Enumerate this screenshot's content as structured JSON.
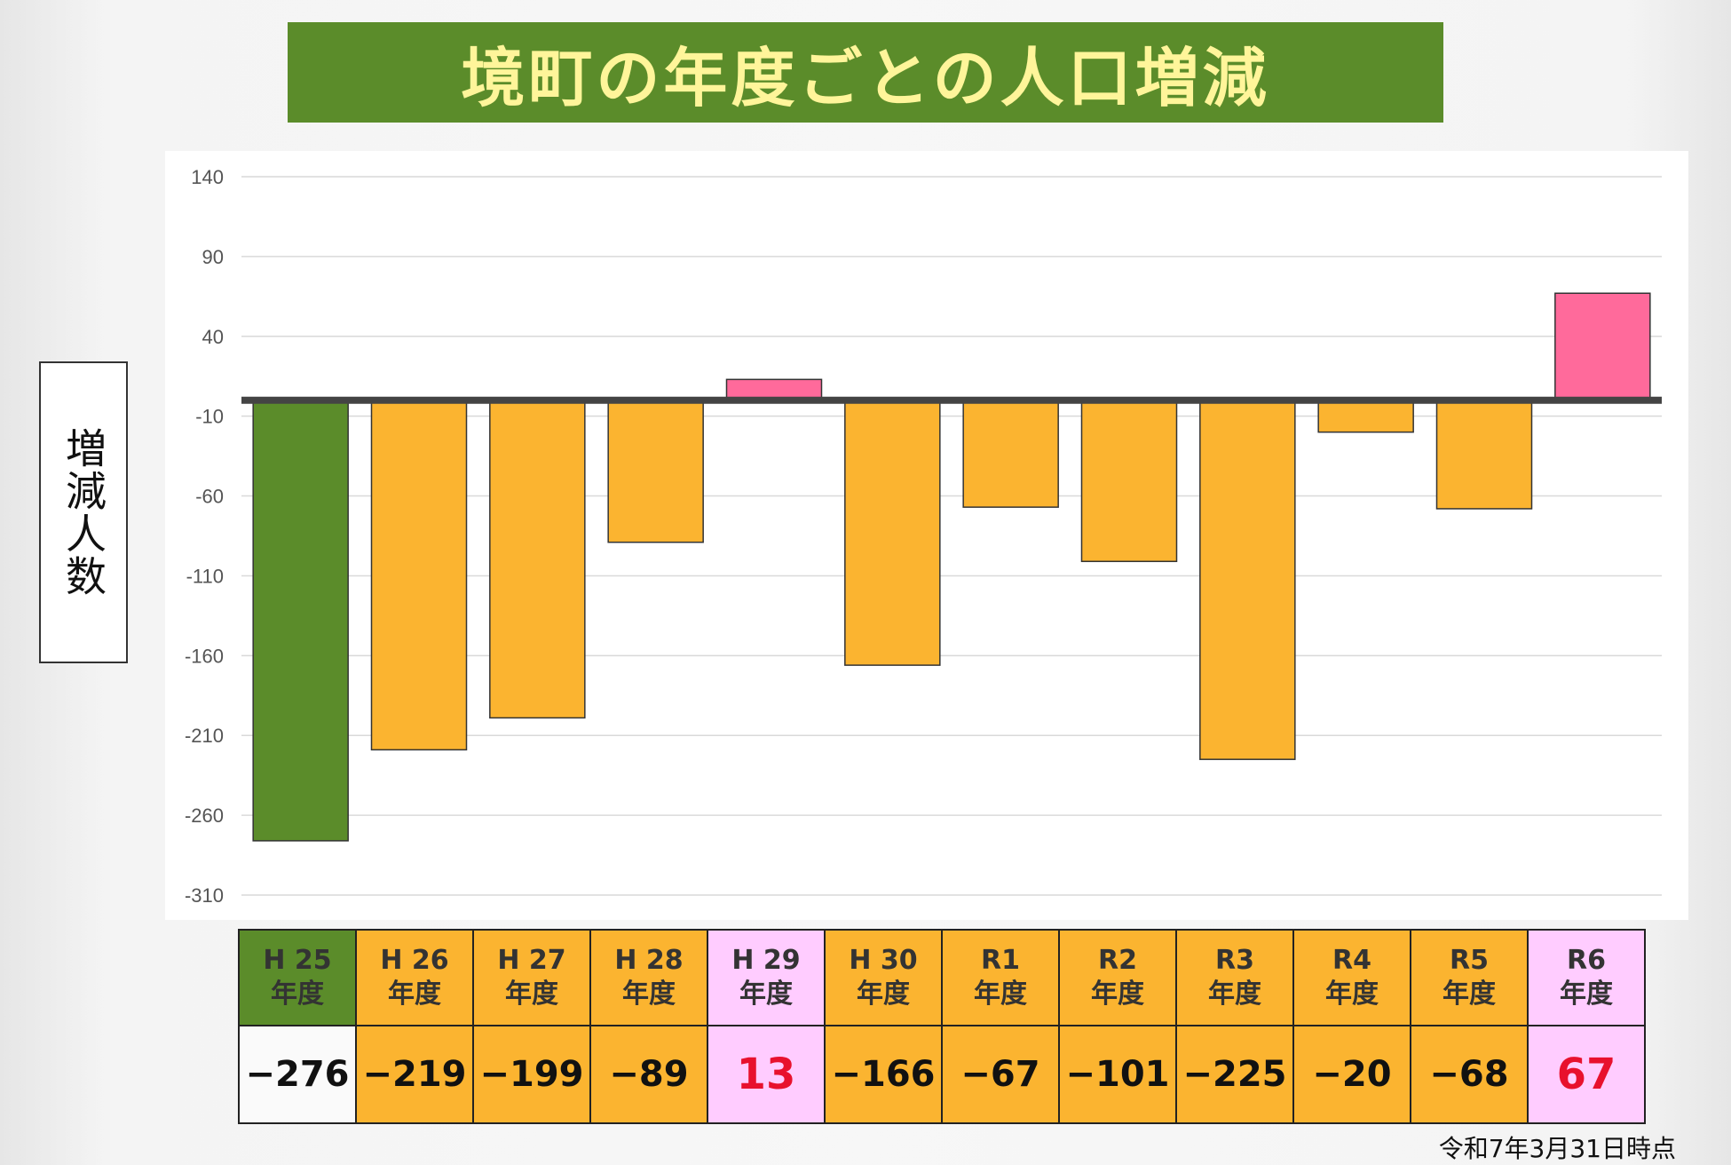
{
  "title": "境町の年度ごとの人口増減",
  "ylabel": "増減人数",
  "footnote": "令和7年3月31日時点",
  "colors": {
    "title_bg": "#5b8c2a",
    "title_text": "#fff59a",
    "first_year": "#5b8c2a",
    "decrease": "#fbb430",
    "increase": "#ff6a9b",
    "increase_cell": "#ffccff",
    "first_value_cell": "#fafafa",
    "increase_value_text": "#e8112d",
    "zero_line": "#444444",
    "grid": "#d9d9d9",
    "tick_text": "#555555"
  },
  "chart_data": {
    "type": "bar",
    "categories": [
      "H 25 年度",
      "H 26 年度",
      "H 27 年度",
      "H 28 年度",
      "H 29 年度",
      "H 30 年度",
      "R1 年度",
      "R2 年度",
      "R3 年度",
      "R4 年度",
      "R5 年度",
      "R6 年度"
    ],
    "values": [
      -276,
      -219,
      -199,
      -89,
      13,
      -166,
      -67,
      -101,
      -225,
      -20,
      -68,
      67
    ],
    "ylim": [
      -310,
      140
    ],
    "yticks": [
      140,
      90,
      40,
      -10,
      -60,
      -110,
      -160,
      -210,
      -260,
      -310
    ],
    "grid": true,
    "legend": "none",
    "title": "境町の年度ごとの人口増減",
    "xlabel": "",
    "ylabel": "増減人数"
  },
  "table": {
    "headers": [
      [
        "H 25",
        "年度"
      ],
      [
        "H 26",
        "年度"
      ],
      [
        "H 27",
        "年度"
      ],
      [
        "H 28",
        "年度"
      ],
      [
        "H 29",
        "年度"
      ],
      [
        "H 30",
        "年度"
      ],
      [
        "R1",
        "年度"
      ],
      [
        "R2",
        "年度"
      ],
      [
        "R3",
        "年度"
      ],
      [
        "R4",
        "年度"
      ],
      [
        "R5",
        "年度"
      ],
      [
        "R6",
        "年度"
      ]
    ],
    "values": [
      "−276",
      "−219",
      "−199",
      "−89",
      "13",
      "−166",
      "−67",
      "−101",
      "−225",
      "−20",
      "−68",
      "67"
    ]
  }
}
